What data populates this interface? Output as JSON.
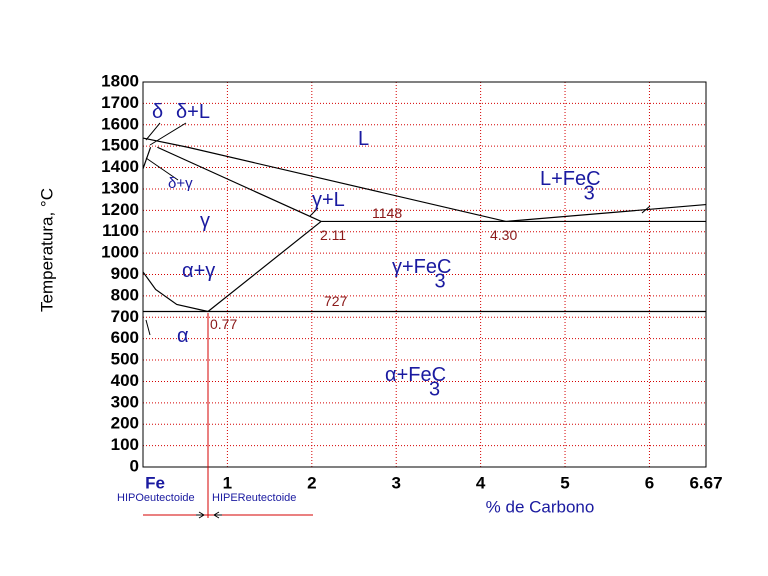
{
  "chart_data": {
    "type": "line",
    "xlabel": "% de Carbono",
    "ylabel": "Temperatura, °C",
    "xlim": [
      0,
      6.67
    ],
    "ylim": [
      0,
      1800
    ],
    "xticks": [
      {
        "value": 0,
        "label": "Fe"
      },
      1,
      2,
      3,
      4,
      5,
      6,
      6.67
    ],
    "yticks": [
      0,
      100,
      200,
      300,
      400,
      500,
      600,
      700,
      800,
      900,
      1000,
      1100,
      1200,
      1300,
      1400,
      1500,
      1600,
      1700,
      1800
    ],
    "grid": true,
    "grid_color": "#d40000",
    "series": [
      {
        "color": "#000000",
        "x": [
          0,
          0.53,
          4.3,
          6.67
        ],
        "values": [
          1538,
          1495,
          1148,
          1227
        ]
      },
      {
        "color": "#000000",
        "x": [
          0.17,
          2.11
        ],
        "values": [
          1495,
          1148
        ]
      },
      {
        "color": "#000000",
        "x": [
          0,
          0.09
        ],
        "values": [
          1394,
          1495
        ]
      },
      {
        "color": "#000000",
        "x": [
          2.11,
          6.67
        ],
        "values": [
          1148,
          1148
        ]
      },
      {
        "color": "#000000",
        "x": [
          0,
          6.67
        ],
        "values": [
          727,
          727
        ]
      },
      {
        "color": "#000000",
        "x": [
          0,
          0.15,
          0.4,
          0.77
        ],
        "values": [
          912,
          830,
          760,
          727
        ]
      },
      {
        "color": "#000000",
        "x": [
          0.77,
          2.11
        ],
        "values": [
          727,
          1148
        ]
      }
    ],
    "annotations": [
      {
        "text": "δ"
      },
      {
        "text": "δ+L"
      },
      {
        "text": "L"
      },
      {
        "text": "δ+γ"
      },
      {
        "text": "γ"
      },
      {
        "text": "γ+L"
      },
      {
        "text": "1148"
      },
      {
        "text": "2.11"
      },
      {
        "text": "4.30"
      },
      {
        "text": "L+Fe",
        "sub": "3",
        "end": "C"
      },
      {
        "text": "α+γ"
      },
      {
        "text": "γ+Fe",
        "sub": "3",
        "end": "C"
      },
      {
        "text": "727"
      },
      {
        "text": "0.77"
      },
      {
        "text": "α"
      },
      {
        "text": "α+Fe",
        "sub": "3",
        "end": "C"
      }
    ],
    "notes": [
      "HIPOeutectoide",
      "HIPEReutectoide"
    ]
  }
}
